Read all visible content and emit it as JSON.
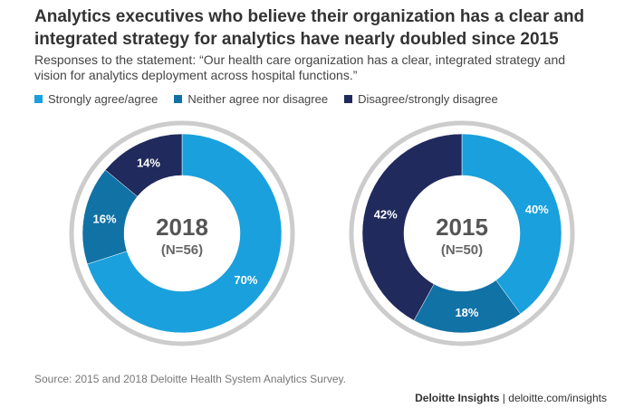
{
  "title": "Analytics executives who believe their organization has a clear and integrated strategy for analytics have nearly doubled since 2015",
  "subtitle": "Responses to the statement: “Our health care organization has a clear, integrated strategy and vision for analytics deployment across hospital functions.”",
  "legend": [
    {
      "label": "Strongly agree/agree",
      "color": "#1aa0dc"
    },
    {
      "label": "Neither agree nor disagree",
      "color": "#1172a6"
    },
    {
      "label": "Disagree/strongly disagree",
      "color": "#202a5c"
    }
  ],
  "chart_data": [
    {
      "type": "pie",
      "title": "2018",
      "subtitle": "(N=56)",
      "categories": [
        "Strongly agree/agree",
        "Neither agree nor disagree",
        "Disagree/strongly disagree"
      ],
      "values": [
        70,
        16,
        14
      ],
      "labels": [
        "70%",
        "16%",
        "14%"
      ]
    },
    {
      "type": "pie",
      "title": "2015",
      "subtitle": "(N=50)",
      "categories": [
        "Strongly agree/agree",
        "Neither agree nor disagree",
        "Disagree/strongly disagree"
      ],
      "values": [
        40,
        18,
        42
      ],
      "labels": [
        "40%",
        "18%",
        "42%"
      ]
    }
  ],
  "source": "Source: 2015 and 2018 Deloitte Health System Analytics Survey.",
  "footer": {
    "brand": "Deloitte Insights",
    "separator": " | ",
    "url": "deloitte.com/insights"
  }
}
